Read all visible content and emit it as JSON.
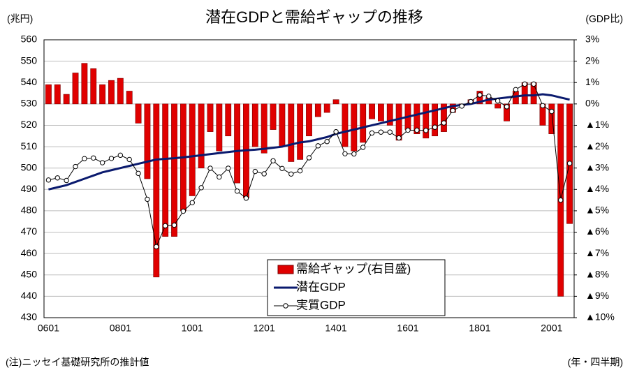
{
  "chart_data": {
    "type": "bar_line",
    "title": "潜在GDPと需給ギャップの推移",
    "y_label": "(兆円)",
    "y2_label": "(GDP比)",
    "x_label": "(年・四半期)",
    "note": "(注)ニッセイ基礎研究所の推計値",
    "categories": [
      "0601",
      null,
      null,
      null,
      null,
      null,
      null,
      null,
      "0801",
      null,
      null,
      null,
      null,
      null,
      null,
      null,
      "1001",
      null,
      null,
      null,
      null,
      null,
      null,
      null,
      "1201",
      null,
      null,
      null,
      null,
      null,
      null,
      null,
      "1401",
      null,
      null,
      null,
      null,
      null,
      null,
      null,
      "1601",
      null,
      null,
      null,
      null,
      null,
      null,
      null,
      "1801",
      null,
      null,
      null,
      null,
      null,
      null,
      null,
      "2001",
      null,
      null
    ],
    "series": [
      {
        "name": "需給ギャップ(右目盛)",
        "type": "bar",
        "axis": "y2",
        "color": "#e00000",
        "values": [
          0.9,
          0.9,
          0.45,
          1.45,
          1.9,
          1.65,
          0.9,
          1.1,
          1.2,
          0.6,
          -0.9,
          -3.5,
          -8.1,
          -6.2,
          -6.2,
          -5.0,
          -4.3,
          -3.0,
          -1.3,
          -2.2,
          -1.5,
          -3.7,
          -4.4,
          -2.0,
          -2.3,
          -1.2,
          -2.0,
          -2.7,
          -2.6,
          -1.5,
          -0.6,
          -0.4,
          0.2,
          -2.0,
          -2.2,
          -1.8,
          -0.7,
          -0.8,
          -1.0,
          -1.7,
          -1.2,
          -1.4,
          -1.6,
          -1.5,
          -1.3,
          -0.4,
          -0.1,
          0.2,
          0.6,
          0.3,
          -0.2,
          -0.8,
          0.6,
          1.0,
          1.0,
          -1.0,
          -1.4,
          -9.0,
          -5.6
        ]
      },
      {
        "name": "潜在GDP",
        "type": "line",
        "color": "#0a1a6e",
        "values": [
          490,
          491,
          492,
          493.5,
          495,
          496.5,
          498,
          499,
          500,
          501,
          502,
          503,
          504,
          504.3,
          504.6,
          505,
          505.5,
          506,
          506.5,
          507,
          507.5,
          508,
          508.3,
          508.6,
          509,
          509.5,
          510,
          511,
          512,
          512.5,
          513.5,
          514.5,
          516,
          517,
          518,
          519,
          520,
          521,
          522,
          523,
          524,
          525,
          526,
          527,
          528,
          529,
          529.5,
          530,
          531,
          532,
          532.5,
          533,
          533.5,
          534,
          534,
          534.5,
          534,
          533,
          532
        ]
      },
      {
        "name": "実質GDP",
        "type": "line_marker",
        "color": "#000000",
        "values": [
          494.4,
          495.4,
          494.2,
          500.7,
          504.4,
          504.7,
          502.5,
          504.5,
          506,
          504,
          497.5,
          485.4,
          463.2,
          473,
          473.3,
          479.8,
          483.8,
          490.8,
          499.9,
          495.8,
          499.9,
          489.2,
          485.9,
          498.4,
          497.3,
          503.4,
          499.8,
          497.2,
          498.7,
          504.8,
          510.4,
          512.4,
          517,
          506.7,
          506.6,
          509.7,
          516.4,
          516.8,
          516.8,
          514.1,
          517.7,
          517.7,
          517.6,
          519.1,
          521.1,
          526.9,
          529,
          531.1,
          534.2,
          533.6,
          531.4,
          528.7,
          536.7,
          539.3,
          539.3,
          529.2,
          526.5,
          485,
          502.2
        ]
      }
    ],
    "ylim": [
      430,
      560
    ],
    "yticks": [
      430,
      440,
      450,
      460,
      470,
      480,
      490,
      500,
      510,
      520,
      530,
      540,
      550,
      560
    ],
    "y2lim": [
      -10,
      3
    ],
    "y2ticks": [
      {
        "value": 3,
        "label": "3%"
      },
      {
        "value": 2,
        "label": "2%"
      },
      {
        "value": 1,
        "label": "1%"
      },
      {
        "value": 0,
        "label": "0%"
      },
      {
        "value": -1,
        "label": "▲1%"
      },
      {
        "value": -2,
        "label": "▲2%"
      },
      {
        "value": -3,
        "label": "▲3%"
      },
      {
        "value": -4,
        "label": "▲4%"
      },
      {
        "value": -5,
        "label": "▲5%"
      },
      {
        "value": -6,
        "label": "▲6%"
      },
      {
        "value": -7,
        "label": "▲7%"
      },
      {
        "value": -8,
        "label": "▲8%"
      },
      {
        "value": -9,
        "label": "▲9%"
      },
      {
        "value": -10,
        "label": "▲10%"
      }
    ],
    "grid": true
  }
}
